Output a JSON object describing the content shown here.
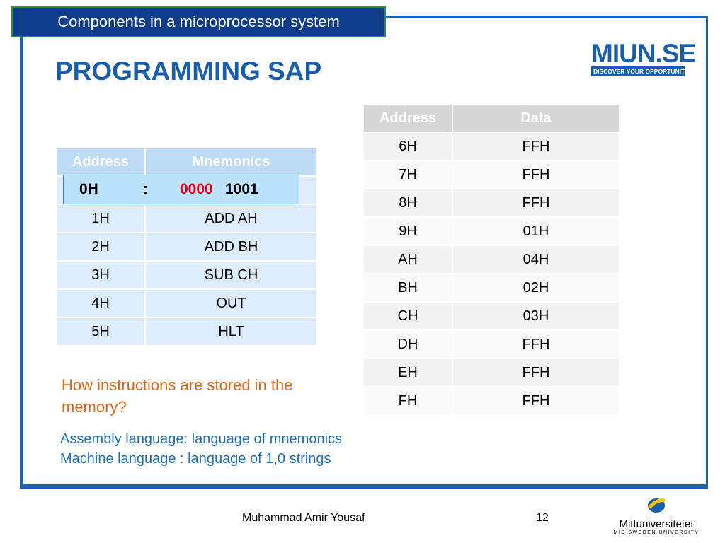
{
  "header_tab": "Components in a microprocessor system",
  "title": "PROGRAMMING SAP",
  "logo": {
    "text": "MIUN.SE",
    "tagline": "DISCOVER YOUR OPPORTUNITIES"
  },
  "table_left": {
    "headers": [
      "Address",
      "Mnemonics"
    ],
    "rows": [
      [
        "1H",
        "ADD AH"
      ],
      [
        "2H",
        "ADD BH"
      ],
      [
        "3H",
        "SUB CH"
      ],
      [
        "4H",
        "OUT"
      ],
      [
        "5H",
        "HLT"
      ]
    ]
  },
  "overlay": {
    "address": "0H",
    "separator": ":",
    "opcode": "0000",
    "operand": "1001"
  },
  "table_right": {
    "headers": [
      "Address",
      "Data"
    ],
    "rows": [
      [
        "6H",
        "FFH"
      ],
      [
        "7H",
        "FFH"
      ],
      [
        "8H",
        "FFH"
      ],
      [
        "9H",
        "01H"
      ],
      [
        "AH",
        "04H"
      ],
      [
        "BH",
        "02H"
      ],
      [
        "CH",
        "03H"
      ],
      [
        "DH",
        "FFH"
      ],
      [
        "EH",
        "FFH"
      ],
      [
        "FH",
        "FFH"
      ]
    ]
  },
  "question": "How instructions are stored in the memory?",
  "notes": [
    "Assembly language: language of mnemonics",
    "Machine language : language of 1,0 strings"
  ],
  "footer": {
    "author": "Muhammad Amir Yousaf",
    "page": "12"
  },
  "university": {
    "name": "Mittuniversitetet",
    "subtitle": "MID SWEDEN UNIVERSITY"
  }
}
